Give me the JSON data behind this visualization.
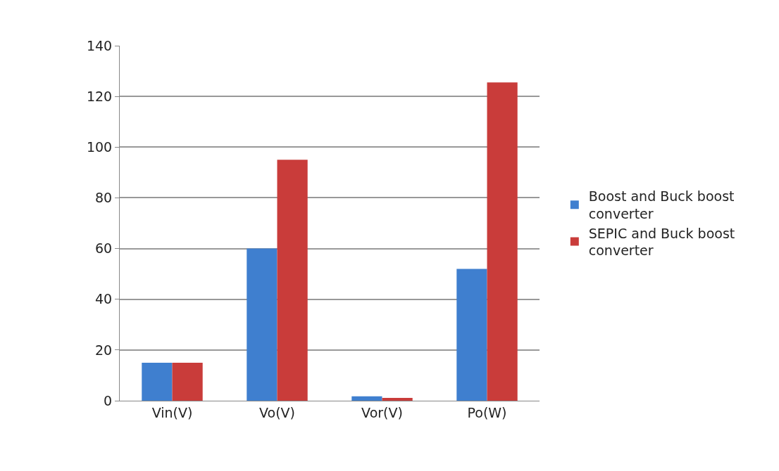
{
  "chart_data": {
    "type": "bar",
    "categories": [
      "Vin(V)",
      "Vo(V)",
      "Vor(V)",
      "Po(W)"
    ],
    "series": [
      {
        "name": "Boost and Buck boost converter",
        "color": "#3f7fcf",
        "values": [
          15,
          60,
          1.7,
          52
        ]
      },
      {
        "name": "SEPIC and Buck boost converter",
        "color": "#c93c3a",
        "values": [
          15,
          95,
          1.1,
          125.5
        ]
      }
    ],
    "ylim": [
      0,
      140
    ],
    "yticks": [
      0,
      20,
      40,
      60,
      80,
      100,
      120,
      140
    ],
    "grid": "y",
    "legend": "right"
  }
}
